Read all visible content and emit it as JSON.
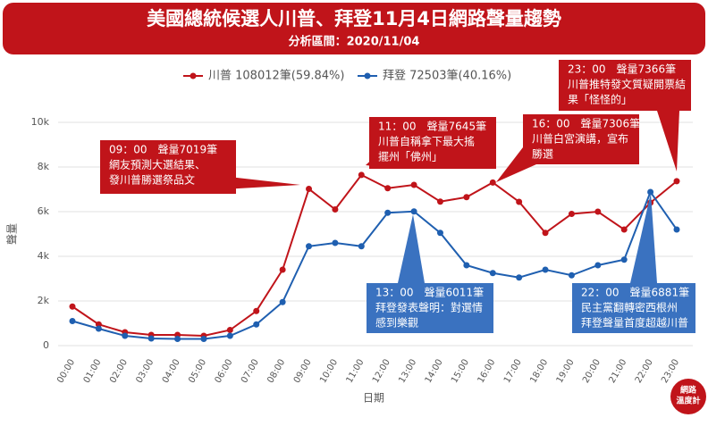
{
  "chart_data": {
    "type": "line",
    "title": "美國總統候選人川普、拜登11月4日網路聲量趨勢",
    "subtitle": "分析區間：2020/11/04",
    "y_label": "聲量",
    "x_label": "日期",
    "logo": [
      "網路",
      "溫度計"
    ],
    "categories": [
      "00:00",
      "01:00",
      "02:00",
      "03:00",
      "04:00",
      "05:00",
      "06:00",
      "07:00",
      "08:00",
      "09:00",
      "10:00",
      "11:00",
      "12:00",
      "13:00",
      "14:00",
      "15:00",
      "16:00",
      "17:00",
      "18:00",
      "19:00",
      "20:00",
      "21:00",
      "22:00",
      "23:00"
    ],
    "series": [
      {
        "name": "川普 108012筆(59.84%)",
        "color": "#c0141a",
        "values": [
          1750,
          950,
          600,
          480,
          480,
          440,
          700,
          1550,
          3400,
          7019,
          6100,
          7645,
          7050,
          7200,
          6450,
          6650,
          7306,
          6440,
          5050,
          5900,
          6000,
          5200,
          6400,
          7366
        ]
      },
      {
        "name": "拜登 72503筆(40.16%)",
        "color": "#1f5fb0",
        "values": [
          1100,
          760,
          440,
          320,
          300,
          300,
          440,
          950,
          1950,
          4450,
          4600,
          4450,
          5950,
          6011,
          5050,
          3600,
          3250,
          3050,
          3400,
          3150,
          3600,
          3850,
          6881,
          5200
        ]
      }
    ],
    "ylim": [
      0,
      10000
    ],
    "yticks": [
      0,
      {
        "value": 2000,
        "label": "2k"
      },
      {
        "value": 4000,
        "label": "4k"
      },
      {
        "value": 6000,
        "label": "6k"
      },
      {
        "value": 8000,
        "label": "8k"
      },
      {
        "value": 10000,
        "label": "10k"
      }
    ],
    "grid": true,
    "annotations": [
      {
        "color": "#c0141a",
        "lines": [
          "09：00　聲量7019筆",
          "網友預測大選結果、",
          "發川普勝選祭品文"
        ]
      },
      {
        "color": "#c0141a",
        "lines": [
          "11：00　聲量7645筆",
          "川普自稱拿下最大搖",
          "擺州「佛州」"
        ]
      },
      {
        "color": "#c0141a",
        "lines": [
          "16：00　聲量7306筆",
          "川普白宮演講，宣布",
          "勝選"
        ]
      },
      {
        "color": "#c0141a",
        "lines": [
          "23：00　聲量7366筆",
          "川普推特發文質疑開票結",
          "果「怪怪的」"
        ]
      },
      {
        "color": "#3a72c0",
        "lines": [
          "13：00　聲量6011筆",
          "拜登發表聲明：對選情",
          "感到樂觀"
        ]
      },
      {
        "color": "#3a72c0",
        "lines": [
          "22：00　聲量6881筆",
          "民主黨翻轉密西根州",
          "拜登聲量首度超越川普"
        ]
      }
    ]
  }
}
